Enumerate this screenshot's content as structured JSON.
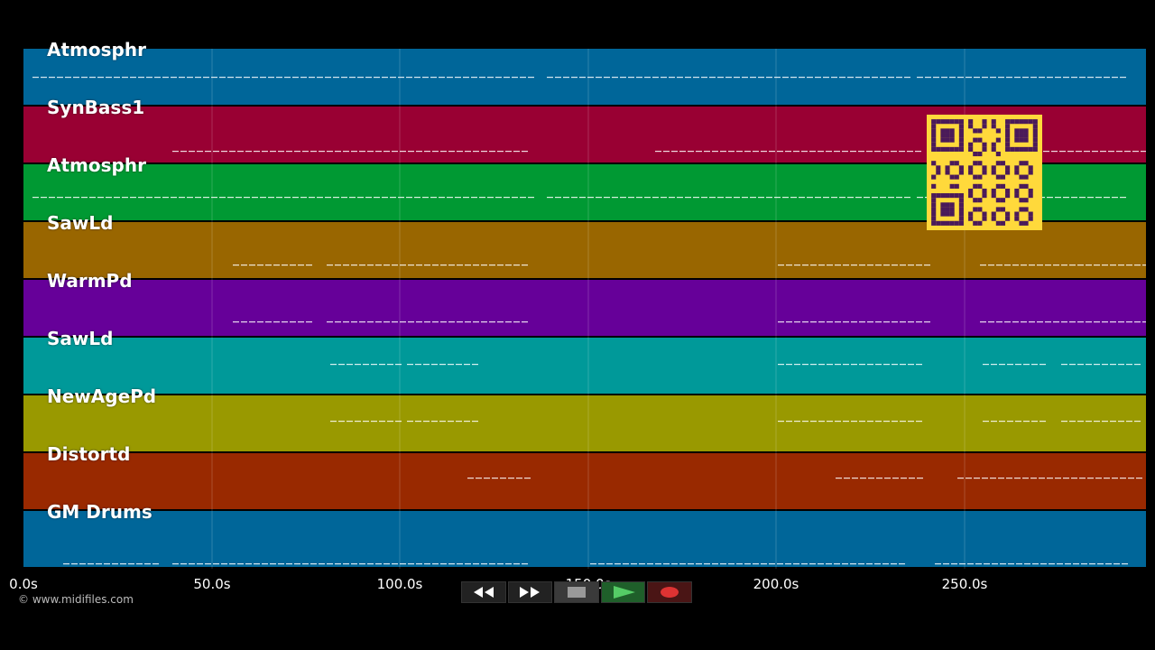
{
  "tracks": [
    {
      "name": "Atmosphr",
      "color": "#006699"
    },
    {
      "name": "SynBass1",
      "color": "#990033"
    },
    {
      "name": "Atmosphr",
      "color": "#009933"
    },
    {
      "name": "SawLd",
      "color": "#996600"
    },
    {
      "name": "WarmPd",
      "color": "#660099"
    },
    {
      "name": "SawLd",
      "color": "#009999"
    },
    {
      "name": "NewAgePd",
      "color": "#999900"
    },
    {
      "name": "Distortd",
      "color": "#992900"
    },
    {
      "name": "GM Drums",
      "color": "#006699"
    }
  ],
  "timeline": {
    "ticks": [
      "0.0s",
      "50.0s",
      "100.0s",
      "150.0s",
      "200.0s",
      "250.0s"
    ]
  },
  "copyright": "© www.midifiles.com",
  "controls": [
    {
      "name": "rewind",
      "icon": "rewind-icon"
    },
    {
      "name": "fast-forward",
      "icon": "fast-forward-icon"
    },
    {
      "name": "stop",
      "icon": "stop-icon"
    },
    {
      "name": "play",
      "icon": "play-icon"
    },
    {
      "name": "record",
      "icon": "record-icon"
    }
  ],
  "qr_code": {
    "icon": "qr-code-icon",
    "color": "#ffd93b"
  }
}
